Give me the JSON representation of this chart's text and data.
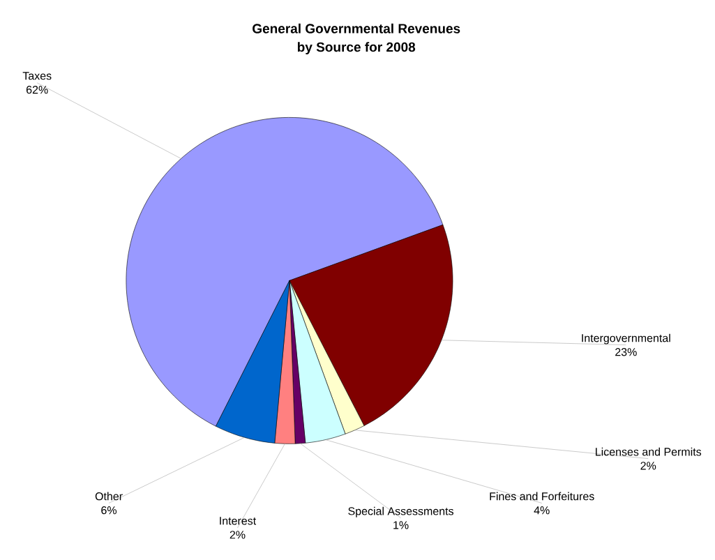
{
  "chart_data": {
    "type": "pie",
    "title": "General Governmental Revenues",
    "subtitle": "by Source for 2008",
    "categories": [
      "Taxes",
      "Intergovernmental",
      "Licenses and Permits",
      "Fines and Forfeitures",
      "Special Assessments",
      "Interest",
      "Other"
    ],
    "values": [
      62,
      23,
      2,
      4,
      1,
      2,
      6
    ],
    "value_labels": [
      "62%",
      "23%",
      "2%",
      "4%",
      "1%",
      "2%",
      "6%"
    ],
    "colors": [
      "#9999ff",
      "#800000",
      "#ffffcc",
      "#ccffff",
      "#660066",
      "#ff8080",
      "#0066cc"
    ]
  }
}
